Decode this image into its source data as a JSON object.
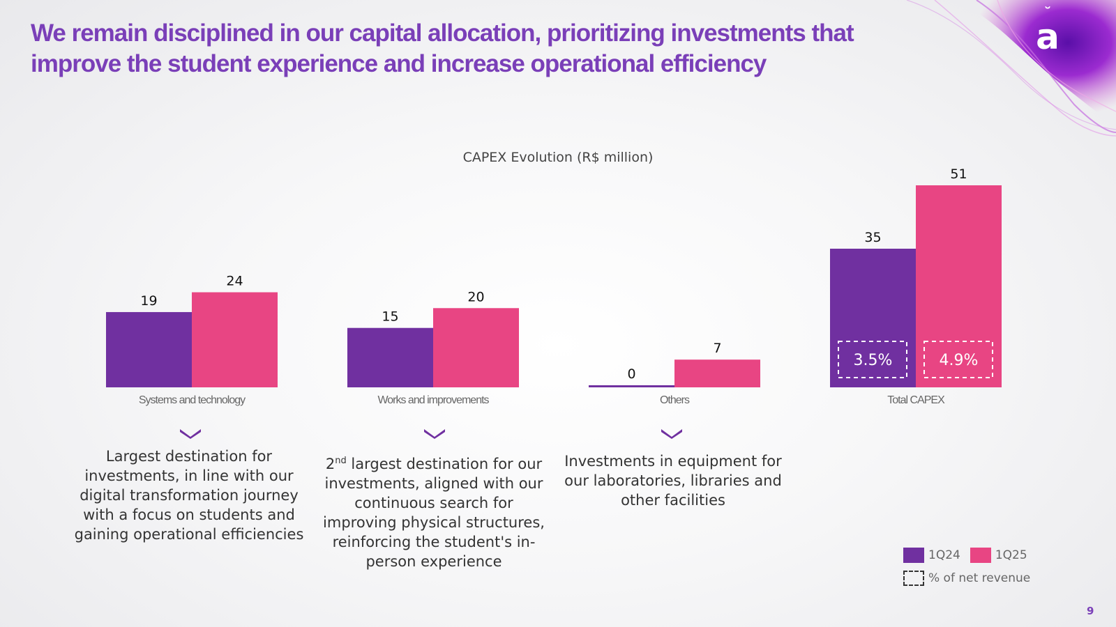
{
  "title": "We remain disciplined in our capital allocation, prioritizing investments that improve the student experience and increase operational efficiency",
  "logo_icon": "brand-logo-a-icon",
  "page_number": "9",
  "colors": {
    "q1_24": "#7030a0",
    "q1_25": "#e84583",
    "title": "#7a3fb8"
  },
  "chart_data": {
    "type": "bar",
    "title": "CAPEX Evolution (R$ million)",
    "categories": [
      "Systems and technology",
      "Works and improvements",
      "Others",
      "Total CAPEX"
    ],
    "series": [
      {
        "name": "1Q24",
        "values": [
          19,
          15,
          0,
          35
        ]
      },
      {
        "name": "1Q25",
        "values": [
          24,
          20,
          7,
          51
        ]
      }
    ],
    "net_revenue_pct": {
      "label": "% of net revenue",
      "values": [
        "3.5%",
        "4.9%"
      ]
    },
    "ylim": [
      0,
      51
    ],
    "grid": false,
    "legend_position": "bottom-right"
  },
  "descriptions": [
    {
      "text": "Largest destination for investments, in line with our digital transformation journey with a focus on students and gaining operational efficiencies"
    },
    {
      "superscript_prefix": "2",
      "superscript": "nd",
      "text": " largest destination for our investments, aligned with our continuous search for improving physical structures, reinforcing the student's in-person experience"
    },
    {
      "text": "Investments in equipment for our laboratories, libraries and other facilities"
    }
  ],
  "legend": {
    "items": [
      "1Q24",
      "1Q25"
    ],
    "dashed_label": "% of net revenue"
  }
}
